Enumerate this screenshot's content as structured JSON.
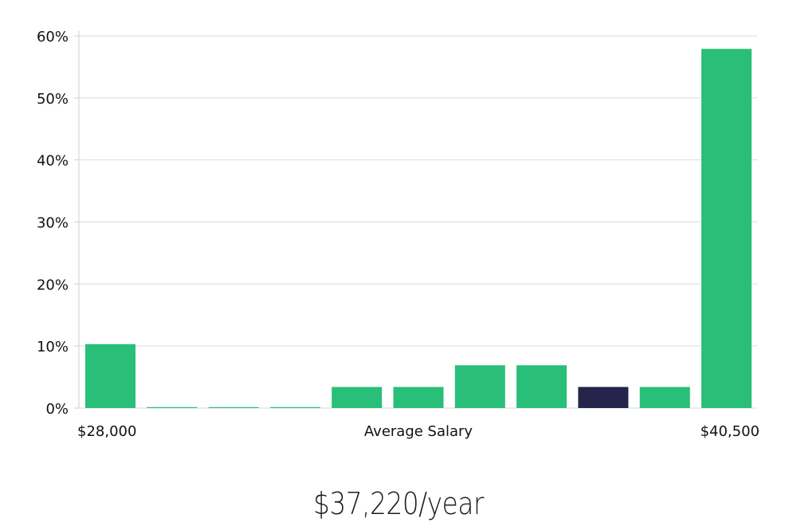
{
  "chart_data": {
    "type": "bar",
    "categories": [
      "b1",
      "b2",
      "b3",
      "b4",
      "b5",
      "b6",
      "b7",
      "b8",
      "b9",
      "b10",
      "b11"
    ],
    "values": [
      10.3,
      0.15,
      0.15,
      0.15,
      3.4,
      3.4,
      6.9,
      6.9,
      3.4,
      3.4,
      57.9
    ],
    "highlight_index": 8,
    "ylim": [
      0,
      60
    ],
    "yticks": [
      "0%",
      "10%",
      "20%",
      "30%",
      "40%",
      "50%",
      "60%"
    ],
    "x_left_label": "$28,000",
    "xlabel": "Average Salary",
    "x_right_label": "$40,500",
    "grid": true,
    "colors": {
      "bar": "#29bf78",
      "highlight": "#26244a",
      "grid": "#d9d9d9",
      "axis": "#cfcfcf"
    }
  },
  "salary_caption": "$37,220/year"
}
